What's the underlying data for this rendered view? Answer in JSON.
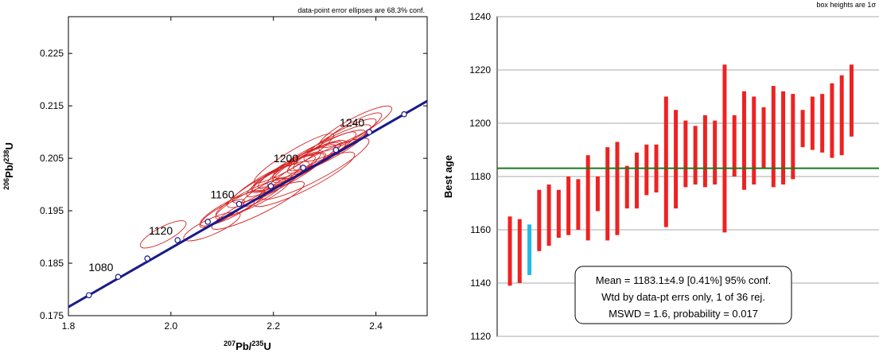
{
  "chart_data": [
    {
      "type": "scatter",
      "subtype": "concordia",
      "note": "data-point error ellipses are 68.3% conf.",
      "xlabel": {
        "sup1": "207",
        "base1": "Pb/",
        "sup2": "235",
        "base2": "U"
      },
      "ylabel": {
        "sup1": "206",
        "base1": "Pb/",
        "sup2": "238",
        "base2": "U"
      },
      "xlim": [
        1.8,
        2.5
      ],
      "ylim": [
        0.175,
        0.232
      ],
      "x_ticks": [
        "1.8",
        "2.0",
        "2.2",
        "2.4"
      ],
      "y_ticks": [
        "0.175",
        "0.185",
        "0.195",
        "0.205",
        "0.215",
        "0.225"
      ],
      "grid": false,
      "concordia_color": "#1a1a8c",
      "ellipse_color": "#d42020",
      "concordia_markers": [
        {
          "x": 1.84,
          "y": 0.1789
        },
        {
          "x": 1.897,
          "y": 0.1824
        },
        {
          "x": 1.954,
          "y": 0.1859
        },
        {
          "x": 2.013,
          "y": 0.1894
        },
        {
          "x": 2.072,
          "y": 0.1929
        },
        {
          "x": 2.133,
          "y": 0.1963
        },
        {
          "x": 2.195,
          "y": 0.1997
        },
        {
          "x": 2.258,
          "y": 0.2032
        },
        {
          "x": 2.322,
          "y": 0.2066
        },
        {
          "x": 2.387,
          "y": 0.21
        },
        {
          "x": 2.455,
          "y": 0.2134
        }
      ],
      "age_labels": [
        {
          "text": "1080",
          "x": 1.897,
          "y": 0.1824
        },
        {
          "text": "1120",
          "x": 2.013,
          "y": 0.1894
        },
        {
          "text": "1160",
          "x": 2.133,
          "y": 0.1963
        },
        {
          "text": "1200",
          "x": 2.258,
          "y": 0.2032
        },
        {
          "text": "1240",
          "x": 2.387,
          "y": 0.21
        }
      ],
      "ellipses": [
        {
          "x": 1.985,
          "y": 0.1905,
          "a": 0.05,
          "b": 0.0014,
          "angle": 28
        },
        {
          "x": 2.08,
          "y": 0.192,
          "a": 0.06,
          "b": 0.0015,
          "angle": 24
        },
        {
          "x": 2.1,
          "y": 0.1945,
          "a": 0.05,
          "b": 0.0012,
          "angle": 30
        },
        {
          "x": 2.12,
          "y": 0.1955,
          "a": 0.07,
          "b": 0.0015,
          "angle": 27
        },
        {
          "x": 2.14,
          "y": 0.1965,
          "a": 0.06,
          "b": 0.0013,
          "angle": 29
        },
        {
          "x": 2.16,
          "y": 0.1975,
          "a": 0.08,
          "b": 0.0016,
          "angle": 26
        },
        {
          "x": 2.18,
          "y": 0.1985,
          "a": 0.05,
          "b": 0.0012,
          "angle": 31
        },
        {
          "x": 2.19,
          "y": 0.2,
          "a": 0.09,
          "b": 0.0017,
          "angle": 28
        },
        {
          "x": 2.2,
          "y": 0.2008,
          "a": 0.06,
          "b": 0.0013,
          "angle": 30
        },
        {
          "x": 2.21,
          "y": 0.2012,
          "a": 0.1,
          "b": 0.0018,
          "angle": 27
        },
        {
          "x": 2.22,
          "y": 0.202,
          "a": 0.07,
          "b": 0.0014,
          "angle": 29
        },
        {
          "x": 2.23,
          "y": 0.2024,
          "a": 0.08,
          "b": 0.0016,
          "angle": 26
        },
        {
          "x": 2.24,
          "y": 0.203,
          "a": 0.06,
          "b": 0.0013,
          "angle": 31
        },
        {
          "x": 2.25,
          "y": 0.2036,
          "a": 0.09,
          "b": 0.0017,
          "angle": 28
        },
        {
          "x": 2.26,
          "y": 0.204,
          "a": 0.07,
          "b": 0.0014,
          "angle": 30
        },
        {
          "x": 2.27,
          "y": 0.2046,
          "a": 0.08,
          "b": 0.0016,
          "angle": 27
        },
        {
          "x": 2.28,
          "y": 0.2052,
          "a": 0.06,
          "b": 0.0013,
          "angle": 29
        },
        {
          "x": 2.29,
          "y": 0.2058,
          "a": 0.1,
          "b": 0.0018,
          "angle": 26
        },
        {
          "x": 2.3,
          "y": 0.2064,
          "a": 0.07,
          "b": 0.0014,
          "angle": 30
        },
        {
          "x": 2.31,
          "y": 0.207,
          "a": 0.09,
          "b": 0.0017,
          "angle": 28
        },
        {
          "x": 2.33,
          "y": 0.2085,
          "a": 0.08,
          "b": 0.0016,
          "angle": 29
        },
        {
          "x": 2.35,
          "y": 0.21,
          "a": 0.07,
          "b": 0.0015,
          "angle": 30
        },
        {
          "x": 2.36,
          "y": 0.211,
          "a": 0.08,
          "b": 0.0017,
          "angle": 28
        },
        {
          "x": 2.26,
          "y": 0.201,
          "a": 0.11,
          "b": 0.002,
          "angle": 27
        },
        {
          "x": 2.24,
          "y": 0.205,
          "a": 0.09,
          "b": 0.0015,
          "angle": 31
        },
        {
          "x": 2.17,
          "y": 0.196,
          "a": 0.1,
          "b": 0.0017,
          "angle": 26
        },
        {
          "x": 2.28,
          "y": 0.203,
          "a": 0.12,
          "b": 0.0022,
          "angle": 28
        }
      ]
    },
    {
      "type": "bar",
      "subtype": "weighted-mean",
      "note": "box heights are 1σ",
      "ylabel": "Best age",
      "ylim": [
        1120,
        1240
      ],
      "y_ticks": [
        "1120",
        "1140",
        "1160",
        "1180",
        "1200",
        "1220",
        "1240"
      ],
      "grid": true,
      "mean_line": 1183.1,
      "mean_line_color": "#1a7a1a",
      "bar_color": "#ee2222",
      "rejected_color": "#22bbe6",
      "bars": [
        {
          "low": 1139,
          "high": 1165
        },
        {
          "low": 1140,
          "high": 1164
        },
        {
          "low": 1143,
          "high": 1162,
          "rejected": true
        },
        {
          "low": 1152,
          "high": 1175
        },
        {
          "low": 1154,
          "high": 1177
        },
        {
          "low": 1157,
          "high": 1175
        },
        {
          "low": 1158,
          "high": 1180
        },
        {
          "low": 1160,
          "high": 1179
        },
        {
          "low": 1156,
          "high": 1188
        },
        {
          "low": 1167,
          "high": 1180
        },
        {
          "low": 1156,
          "high": 1191
        },
        {
          "low": 1158,
          "high": 1193
        },
        {
          "low": 1168,
          "high": 1184
        },
        {
          "low": 1168,
          "high": 1189
        },
        {
          "low": 1173,
          "high": 1192
        },
        {
          "low": 1174,
          "high": 1192
        },
        {
          "low": 1161,
          "high": 1210
        },
        {
          "low": 1168,
          "high": 1205
        },
        {
          "low": 1176,
          "high": 1201
        },
        {
          "low": 1177,
          "high": 1199
        },
        {
          "low": 1176,
          "high": 1203
        },
        {
          "low": 1177,
          "high": 1201
        },
        {
          "low": 1159,
          "high": 1222
        },
        {
          "low": 1180,
          "high": 1203
        },
        {
          "low": 1175,
          "high": 1212
        },
        {
          "low": 1177,
          "high": 1210
        },
        {
          "low": 1183,
          "high": 1206
        },
        {
          "low": 1176,
          "high": 1214
        },
        {
          "low": 1177,
          "high": 1212
        },
        {
          "low": 1179,
          "high": 1211
        },
        {
          "low": 1191,
          "high": 1205
        },
        {
          "low": 1190,
          "high": 1210
        },
        {
          "low": 1189,
          "high": 1211
        },
        {
          "low": 1187,
          "high": 1215
        },
        {
          "low": 1188,
          "high": 1218
        },
        {
          "low": 1195,
          "high": 1222
        }
      ],
      "result_box": {
        "line1": "Mean = 1183.1±4.9  [0.41%]  95% conf.",
        "line2": "Wtd by data-pt errs only, 1 of 36 rej.",
        "line3": "MSWD = 1.6, probability = 0.017"
      }
    }
  ]
}
